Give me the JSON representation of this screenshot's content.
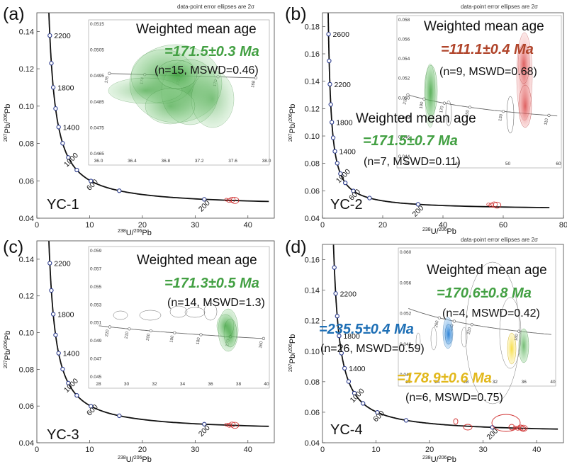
{
  "figure_note": "data-point error ellipses are 2σ",
  "colors": {
    "green": "#43a043",
    "red": "#c0392b",
    "rust": "#b0442a",
    "blue": "#1e6fb5",
    "yellow": "#e2b81c",
    "curve": "#111111",
    "marker": "#2a3a8c"
  },
  "axes": {
    "x_label_sup": "238",
    "x_label_main": "U/",
    "x_label_sup2": "206",
    "x_label_end": "Pb",
    "y_label_sup": "207",
    "y_label_main": "Pb/",
    "y_label_sup2": "206",
    "y_label_end": "Pb"
  },
  "chart_data": [
    {
      "type": "scatter",
      "panel": "(a)",
      "sample": "YC-1",
      "xlim": [
        0,
        45
      ],
      "ylim": [
        0.04,
        0.15
      ],
      "xticks": [
        "0",
        "10",
        "20",
        "30",
        "40"
      ],
      "yticks": [
        "0.04",
        "0.06",
        "0.08",
        "0.10",
        "0.12",
        "0.14"
      ],
      "concordia_age_labels": [
        "2200",
        "1800",
        "1400",
        "1000",
        "600",
        "200"
      ],
      "inset": {
        "xlim": [
          36.0,
          38.0
        ],
        "ylim": [
          0.0465,
          0.0515
        ],
        "xticks": [
          "36.0",
          "36.4",
          "36.8",
          "37.2",
          "37.6",
          "38.0"
        ],
        "yticks": [
          "0.0465",
          "0.0475",
          "0.0485",
          "0.0495",
          "0.0505",
          "0.0515"
        ],
        "age_labels": [
          "176",
          "174",
          "172",
          "170",
          "168"
        ]
      },
      "results": [
        {
          "title": "Weighted mean age",
          "age": "=171.5±0.3 Ma",
          "stats": "(n=15, MSWD=0.46)",
          "color": "#43a043"
        }
      ]
    },
    {
      "type": "scatter",
      "panel": "(b)",
      "sample": "YC-2",
      "xlim": [
        0,
        80
      ],
      "ylim": [
        0.04,
        0.19
      ],
      "xticks": [
        "0",
        "20",
        "40",
        "60",
        "80"
      ],
      "yticks": [
        "0.04",
        "0.06",
        "0.08",
        "0.10",
        "0.12",
        "0.14",
        "0.16",
        "0.18"
      ],
      "concordia_age_labels": [
        "2600",
        "2200",
        "1800",
        "1400",
        "1000",
        "600",
        "200"
      ],
      "inset": {
        "xlim": [
          30,
          60
        ],
        "ylim": [
          0.044,
          0.058
        ],
        "xticks": [
          "30",
          "40",
          "50",
          "60"
        ],
        "yticks": [
          "0.044",
          "0.046",
          "0.048",
          "0.050",
          "0.052",
          "0.054",
          "0.056",
          "0.058"
        ],
        "age_labels": [
          "210",
          "190",
          "170",
          "150",
          "130",
          "110"
        ]
      },
      "results": [
        {
          "title": "Weighted mean age",
          "age": "=111.1±0.4 Ma",
          "stats": "(n=9, MSWD=0.68)",
          "color": "#b0442a"
        },
        {
          "title": "Weighted mean age",
          "age": "=171.5±0.7 Ma",
          "stats": "(n=7, MSWD=0.11)",
          "color": "#43a043"
        }
      ]
    },
    {
      "type": "scatter",
      "panel": "(c)",
      "sample": "YC-3",
      "xlim": [
        0,
        45
      ],
      "ylim": [
        0.04,
        0.15
      ],
      "xticks": [
        "0",
        "10",
        "20",
        "30",
        "40"
      ],
      "yticks": [
        "0.04",
        "0.06",
        "0.08",
        "0.10",
        "0.12",
        "0.14"
      ],
      "concordia_age_labels": [
        "2200",
        "1800",
        "1400",
        "1000",
        "600",
        "200"
      ],
      "inset": {
        "xlim": [
          28,
          40
        ],
        "ylim": [
          0.045,
          0.059
        ],
        "xticks": [
          "28",
          "30",
          "32",
          "34",
          "36",
          "38",
          "40"
        ],
        "yticks": [
          "0.045",
          "0.047",
          "0.049",
          "0.051",
          "0.053",
          "0.055",
          "0.057",
          "0.059"
        ],
        "age_labels": [
          "220",
          "210",
          "200",
          "190",
          "180",
          "170",
          "160"
        ]
      },
      "results": [
        {
          "title": "Weighted mean age",
          "age": "=171.3±0.5 Ma",
          "stats": "(n=14, MSWD=1.3)",
          "color": "#43a043"
        }
      ]
    },
    {
      "type": "scatter",
      "panel": "(d)",
      "sample": "YC-4",
      "xlim": [
        0,
        45
      ],
      "ylim": [
        0.04,
        0.17
      ],
      "xticks": [
        "0",
        "10",
        "20",
        "30",
        "40"
      ],
      "yticks": [
        "0.04",
        "0.06",
        "0.08",
        "0.10",
        "0.12",
        "0.14",
        "0.16"
      ],
      "concordia_age_labels": [
        "2200",
        "1800",
        "1400",
        "1000",
        "600",
        "200"
      ],
      "inset": {
        "xlim": [
          20,
          40
        ],
        "ylim": [
          0.044,
          0.06
        ],
        "xticks": [
          "20",
          "24",
          "28",
          "32",
          "36",
          "40"
        ],
        "yticks": [
          "0.044",
          "0.048",
          "0.052",
          "0.056",
          "0.060"
        ],
        "age_labels": [
          "260",
          "240",
          "220",
          "180"
        ]
      },
      "results": [
        {
          "title": "Weighted mean age",
          "age": "=170.6±0.8 Ma",
          "stats": "(n=4, MSWD=0.42)",
          "color": "#43a043"
        },
        {
          "title": "",
          "age": "=235.5±0.4 Ma",
          "stats": "(n=26, MSWD=0.59)",
          "color": "#1e6fb5"
        },
        {
          "title": "",
          "age": "=178.9±0.6 Ma",
          "stats": "(n=6, MSWD=0.75)",
          "color": "#e2b81c"
        }
      ]
    }
  ]
}
